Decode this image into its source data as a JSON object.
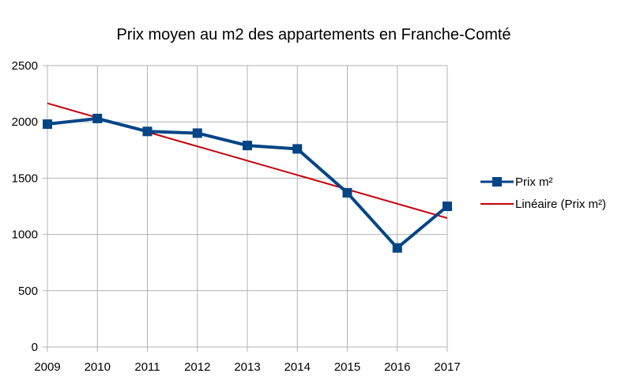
{
  "chart_data": {
    "type": "line",
    "title": "Prix moyen au m2 des appartements en Franche-Comté",
    "xlabel": "",
    "ylabel": "",
    "categories": [
      "2009",
      "2010",
      "2011",
      "2012",
      "2013",
      "2014",
      "2015",
      "2016",
      "2017"
    ],
    "yticks": [
      "0",
      "500",
      "1000",
      "1500",
      "2000",
      "2500"
    ],
    "ylim": [
      0,
      2500
    ],
    "grid": true,
    "legend_position": "right",
    "series": [
      {
        "name": "Prix m²",
        "values": [
          1980,
          2030,
          1915,
          1900,
          1790,
          1760,
          1370,
          880,
          1250
        ],
        "color": "#004586",
        "marker": "square"
      }
    ],
    "trendline": {
      "name": "Linéaire (Prix m²)",
      "type": "linear",
      "start": 2165,
      "end": 1145,
      "color": "#c5000b"
    }
  }
}
